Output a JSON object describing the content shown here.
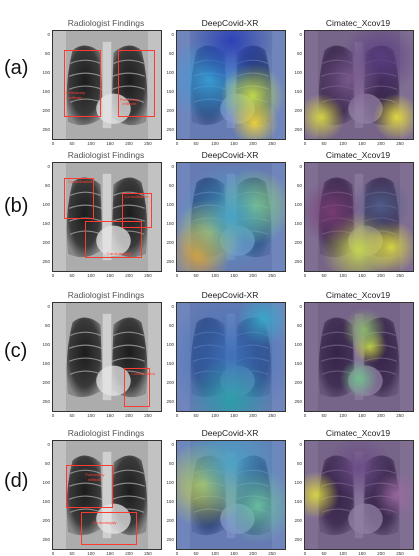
{
  "rows": [
    {
      "label": "(a)",
      "titles": [
        "Radiologist Findings",
        "DeepCovid-XR",
        "Cimatec_Xcov19"
      ],
      "findings": [
        "Pulmonary\ninfiltrate",
        "Pulmonary\ninfiltrate"
      ]
    },
    {
      "label": "(b)",
      "titles": [
        "Radiologist Findings",
        "DeepCovid-XR",
        "Cimatec_Xcov19"
      ],
      "findings": [
        "Consolidation",
        "Consolidation",
        "Cardiomegaly"
      ]
    },
    {
      "label": "(c)",
      "titles": [
        "Radiologist Findings",
        "DeepCovid-XR",
        "Cimatec_Xcov19"
      ],
      "findings": [
        "Consolidation"
      ]
    },
    {
      "label": "(d)",
      "titles": [
        "Radiologist Findings",
        "DeepCovid-XR",
        "Cimatec_Xcov19"
      ],
      "findings": [
        "Pulmonary\ninfiltrate",
        "Cardiomegaly"
      ]
    }
  ],
  "axis_ticks": {
    "y": [
      "0",
      "50",
      "100",
      "150",
      "200",
      "250"
    ],
    "x": [
      "0",
      "50",
      "100",
      "150",
      "200",
      "250"
    ]
  },
  "colors": {
    "finding_box": "#ff3b2f",
    "jet_low": "#2a1b7a",
    "jet_high": "#f5e233",
    "viridis_low": "#45215a",
    "viridis_high": "#f2e13a"
  }
}
